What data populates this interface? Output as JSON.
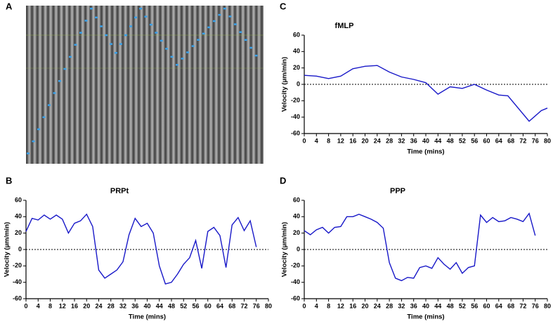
{
  "chart_data": [
    {
      "type": "image",
      "panel": "A"
    },
    {
      "type": "line",
      "panel": "B",
      "title": "PRPt",
      "xlabel": "Time (mins)",
      "ylabel": "Velocity (µm/min)",
      "color": "#1818c8",
      "zero_line": true,
      "x": [
        0,
        2,
        4,
        6,
        8,
        10,
        12,
        14,
        16,
        18,
        20,
        22,
        24,
        26,
        28,
        30,
        32,
        34,
        36,
        38,
        40,
        42,
        44,
        46,
        48,
        50,
        52,
        54,
        56,
        58,
        60,
        62,
        64,
        66,
        68,
        70,
        72,
        74,
        76
      ],
      "values": [
        22,
        38,
        36,
        42,
        37,
        42,
        37,
        20,
        32,
        35,
        43,
        28,
        -25,
        -35,
        -30,
        -25,
        -15,
        18,
        38,
        28,
        32,
        20,
        -20,
        -42,
        -40,
        -30,
        -18,
        -10,
        11,
        -23,
        22,
        27,
        17,
        -22,
        30,
        39,
        23,
        35,
        3
      ],
      "xlim": [
        0,
        80
      ],
      "xticks": [
        0,
        4,
        8,
        12,
        16,
        20,
        24,
        28,
        32,
        36,
        40,
        44,
        48,
        52,
        56,
        60,
        64,
        68,
        72,
        76,
        80
      ],
      "ylim": [
        -60,
        60
      ],
      "yticks": [
        -60,
        -40,
        -20,
        0,
        20,
        40,
        60
      ]
    },
    {
      "type": "line",
      "panel": "C",
      "title": "fMLP",
      "xlabel": "Time (mins)",
      "ylabel": "Velocity (µm/min)",
      "color": "#1818c8",
      "zero_line": true,
      "x": [
        0,
        4,
        8,
        12,
        16,
        20,
        24,
        28,
        32,
        36,
        40,
        44,
        48,
        52,
        56,
        60,
        64,
        67,
        74,
        78,
        80
      ],
      "values": [
        11,
        10,
        7,
        10,
        19,
        22,
        23,
        15,
        9,
        6,
        2,
        -12,
        -3,
        -5,
        0,
        -7,
        -13,
        -14,
        -45,
        -32,
        -29
      ],
      "xlim": [
        0,
        80
      ],
      "xticks": [
        0,
        4,
        8,
        12,
        16,
        20,
        24,
        28,
        32,
        36,
        40,
        44,
        48,
        52,
        56,
        60,
        64,
        68,
        72,
        76,
        80
      ],
      "ylim": [
        -60,
        60
      ],
      "yticks": [
        -60,
        -40,
        -20,
        0,
        20,
        40,
        60
      ]
    },
    {
      "type": "line",
      "panel": "D",
      "title": "PPP",
      "xlabel": "Time (mins)",
      "ylabel": "Velocity (µm/min)",
      "color": "#1818c8",
      "zero_line": true,
      "x": [
        0,
        2,
        4,
        6,
        8,
        10,
        12,
        14,
        16,
        18,
        20,
        22,
        24,
        26,
        28,
        30,
        32,
        34,
        36,
        38,
        40,
        42,
        44,
        46,
        48,
        50,
        52,
        54,
        56,
        58,
        60,
        62,
        64,
        66,
        68,
        70,
        72,
        74,
        76
      ],
      "values": [
        23,
        18,
        24,
        27,
        20,
        27,
        28,
        40,
        40,
        43,
        40,
        37,
        33,
        26,
        -16,
        -35,
        -38,
        -34,
        -35,
        -22,
        -20,
        -23,
        -10,
        -18,
        -24,
        -16,
        -29,
        -22,
        -20,
        42,
        33,
        39,
        34,
        35,
        39,
        37,
        34,
        44,
        17
      ],
      "xlim": [
        0,
        80
      ],
      "xticks": [
        0,
        4,
        8,
        12,
        16,
        20,
        24,
        28,
        32,
        36,
        40,
        44,
        48,
        52,
        56,
        60,
        64,
        68,
        72,
        76,
        80
      ],
      "ylim": [
        -60,
        60
      ],
      "yticks": [
        -60,
        -40,
        -20,
        0,
        20,
        40,
        60
      ]
    }
  ]
}
